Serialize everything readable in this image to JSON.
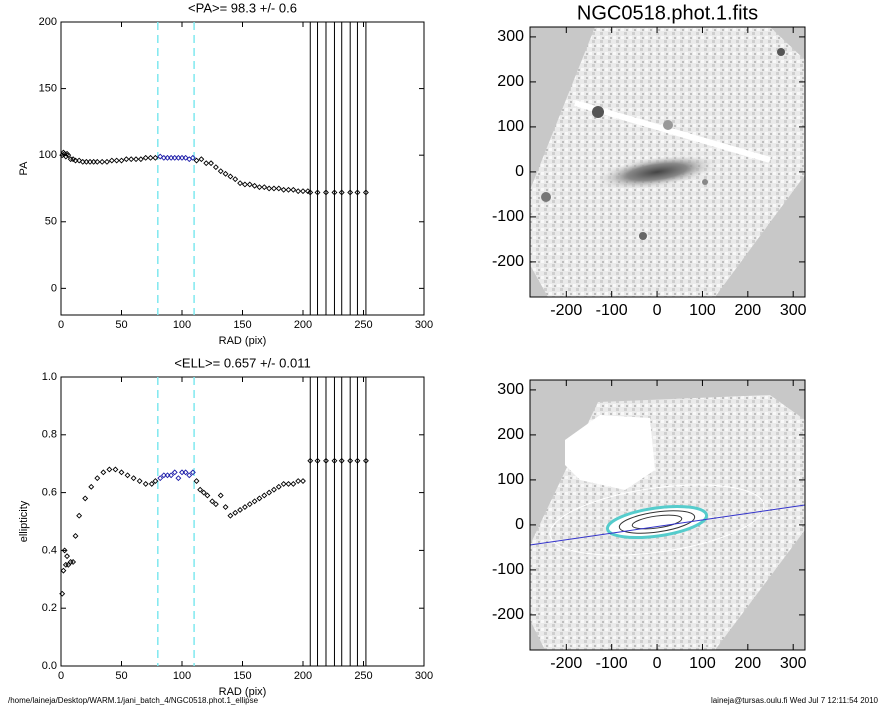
{
  "chart_data": [
    {
      "type": "scatter",
      "title": "<PA>=  98.3 +/-   0.6",
      "x_label": "RAD (pix)",
      "y_label": "PA",
      "xlim": [
        0,
        300
      ],
      "ylim": [
        -20,
        200
      ],
      "xticks": [
        0,
        50,
        100,
        150,
        200,
        250,
        300
      ],
      "yticks": [
        0,
        50,
        100,
        150,
        200
      ],
      "dashed_lines": {
        "color": "#7fe8ef",
        "x": [
          80,
          110
        ]
      },
      "vlines": {
        "color": "#000000",
        "x": [
          206,
          212,
          219,
          226,
          232,
          239,
          245,
          252
        ]
      },
      "series": [
        {
          "color": "#000000",
          "x": [
            1,
            2,
            3,
            4,
            5,
            6,
            8,
            10,
            12,
            15,
            18,
            21,
            24,
            27,
            30,
            34,
            38,
            42,
            46,
            50,
            54,
            58,
            62,
            66,
            70,
            74,
            78
          ],
          "values": [
            100,
            102,
            101,
            99,
            101,
            100,
            97,
            97,
            96,
            96,
            95,
            95,
            95,
            95,
            95,
            95,
            95,
            96,
            96,
            96,
            97,
            97,
            97,
            97,
            98,
            98,
            98
          ]
        },
        {
          "color": "#1a1aa8",
          "x": [
            82,
            85,
            88,
            91,
            94,
            97,
            100,
            103,
            106,
            109
          ],
          "values": [
            99,
            98,
            98,
            98,
            98,
            98,
            98,
            98,
            97,
            98
          ]
        },
        {
          "color": "#000000",
          "x": [
            112,
            116,
            120,
            124,
            128,
            132,
            136,
            140,
            144,
            148,
            152,
            156,
            160,
            164,
            168,
            172,
            176,
            180,
            184,
            188,
            192,
            196,
            200,
            204
          ],
          "values": [
            96,
            97,
            94,
            94,
            91,
            88,
            86,
            84,
            82,
            79,
            78,
            78,
            77,
            76,
            76,
            75,
            75,
            75,
            74,
            74,
            74,
            73,
            73,
            73
          ]
        },
        {
          "color": "#000000",
          "x": [
            206,
            212,
            219,
            226,
            232,
            239,
            245,
            252
          ],
          "values": [
            72,
            72,
            72,
            72,
            72,
            72,
            72,
            72
          ]
        }
      ]
    },
    {
      "type": "scatter",
      "title": "<ELL>= 0.657 +/-  0.011",
      "x_label": "RAD (pix)",
      "y_label": "ellipticity",
      "xlim": [
        0,
        300
      ],
      "ylim": [
        0,
        1
      ],
      "xticks": [
        0,
        50,
        100,
        150,
        200,
        250,
        300
      ],
      "yticks": [
        {
          "value": 0,
          "label": "0.0"
        },
        0.2,
        0.4,
        0.6,
        0.8,
        {
          "value": 1,
          "label": "1.0"
        }
      ],
      "dashed_lines": {
        "color": "#7fe8ef",
        "x": [
          80,
          110
        ]
      },
      "vlines": {
        "color": "#000000",
        "x": [
          206,
          212,
          219,
          226,
          232,
          239,
          245,
          252
        ]
      },
      "series": [
        {
          "color": "#000000",
          "x": [
            1,
            2,
            3,
            4,
            5,
            6,
            8,
            10,
            12,
            15,
            20,
            25,
            30,
            35,
            40,
            45,
            50,
            55,
            60,
            65,
            70,
            75,
            78
          ],
          "values": [
            0.25,
            0.33,
            0.4,
            0.35,
            0.38,
            0.35,
            0.36,
            0.36,
            0.45,
            0.52,
            0.58,
            0.62,
            0.65,
            0.67,
            0.68,
            0.68,
            0.67,
            0.66,
            0.65,
            0.64,
            0.63,
            0.63,
            0.64
          ]
        },
        {
          "color": "#1a1aa8",
          "x": [
            82,
            85,
            88,
            91,
            94,
            97,
            100,
            103,
            106,
            109
          ],
          "values": [
            0.65,
            0.66,
            0.66,
            0.66,
            0.67,
            0.65,
            0.67,
            0.67,
            0.66,
            0.67
          ]
        },
        {
          "color": "#000000",
          "x": [
            112,
            115,
            118,
            121,
            125,
            128,
            132,
            136,
            140,
            144,
            148,
            152,
            156,
            160,
            164,
            168,
            172,
            176,
            180,
            184,
            188,
            192,
            196,
            200
          ],
          "values": [
            0.64,
            0.61,
            0.6,
            0.59,
            0.57,
            0.56,
            0.59,
            0.55,
            0.52,
            0.53,
            0.54,
            0.55,
            0.56,
            0.57,
            0.58,
            0.59,
            0.6,
            0.61,
            0.62,
            0.63,
            0.63,
            0.63,
            0.64,
            0.64
          ]
        },
        {
          "color": "#000000",
          "x": [
            206,
            212,
            219,
            226,
            232,
            239,
            245,
            252
          ],
          "values": [
            0.71,
            0.71,
            0.71,
            0.71,
            0.71,
            0.71,
            0.71,
            0.71
          ]
        }
      ]
    },
    {
      "type": "image",
      "title": "NGC0518.phot.1.fits",
      "xlim": [
        -280,
        326
      ],
      "ylim": [
        -278,
        322
      ],
      "xticks": [
        -200,
        -100,
        0,
        100,
        200,
        300
      ],
      "yticks": [
        -200,
        -100,
        0,
        100,
        200,
        300
      ]
    },
    {
      "type": "image",
      "xlim": [
        -280,
        326
      ],
      "ylim": [
        -278,
        322
      ],
      "xticks": [
        -200,
        -100,
        0,
        100,
        200,
        300
      ],
      "yticks": [
        -200,
        -100,
        0,
        100,
        200,
        300
      ]
    }
  ],
  "footer": {
    "left": "/home/laineja/Desktop/WARM.1/jani_batch_4/NGC0518.phot.1_ellipse",
    "right": "laineja@tursas.oulu.fi  Wed Jul  7 12:11:54 2010"
  }
}
